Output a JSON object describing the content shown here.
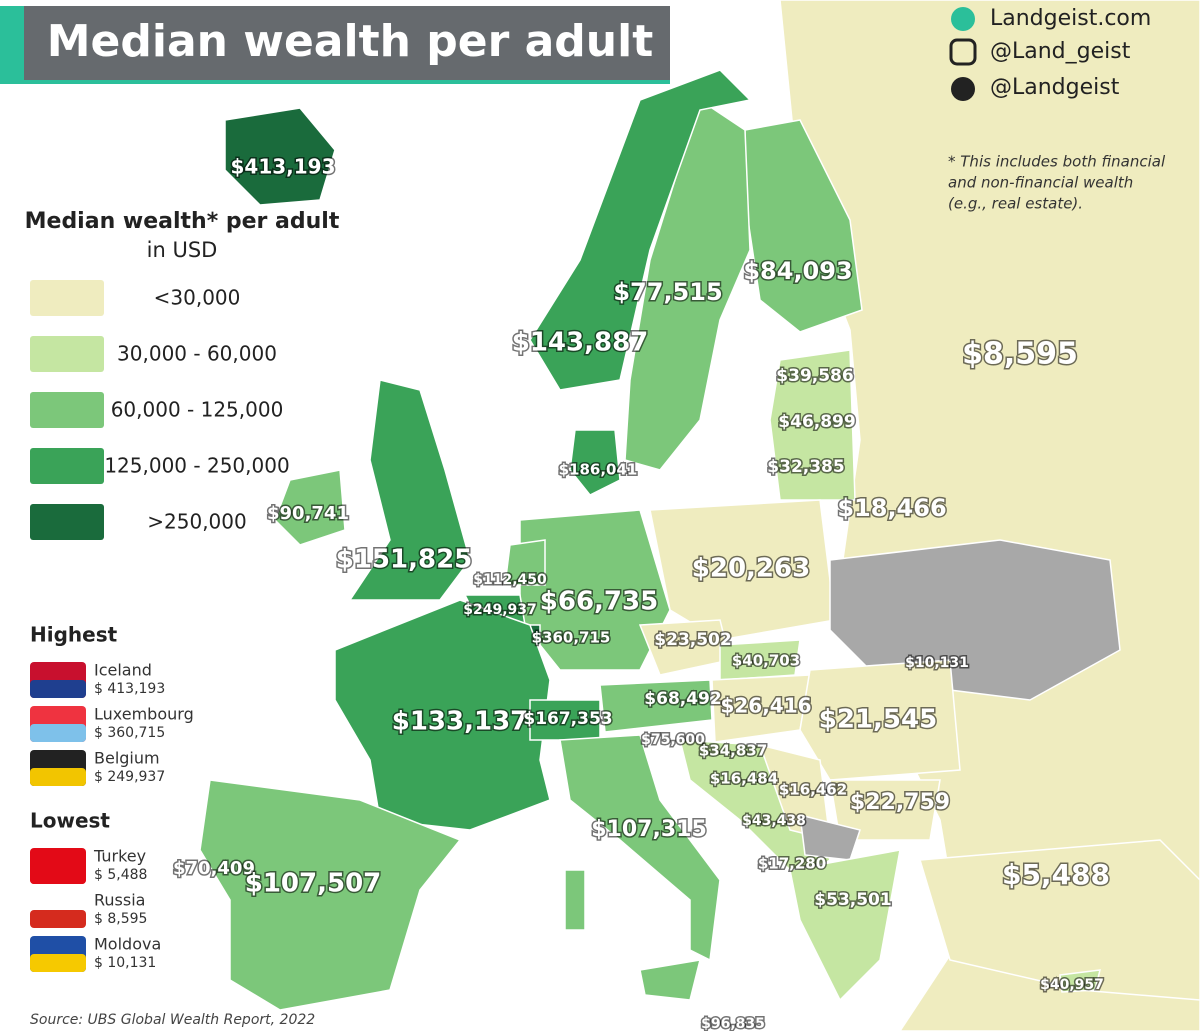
{
  "title": "Median wealth per adult",
  "social": [
    "Landgeist.com",
    "@Land_geist",
    "@Landgeist"
  ],
  "note": [
    "* This includes both financial",
    "and non-financial wealth",
    "(e.g., real estate)."
  ],
  "legend": {
    "title": "Median wealth* per adult",
    "subtitle": "in USD",
    "items": [
      {
        "label": "<30,000",
        "color": "#efecbf"
      },
      {
        "label": "30,000 - 60,000",
        "color": "#c5e6a2"
      },
      {
        "label": "60,000 - 125,000",
        "color": "#7cc77a"
      },
      {
        "label": "125,000 - 250,000",
        "color": "#3aa358"
      },
      {
        "label": ">250,000",
        "color": "#1a6b3c"
      }
    ]
  },
  "highest": {
    "title": "Highest",
    "items": [
      {
        "country": "Iceland",
        "value": "$ 413,193"
      },
      {
        "country": "Luxembourg",
        "value": "$ 360,715"
      },
      {
        "country": "Belgium",
        "value": "$ 249,937"
      }
    ]
  },
  "lowest": {
    "title": "Lowest",
    "items": [
      {
        "country": "Turkey",
        "value": "$ 5,488"
      },
      {
        "country": "Russia",
        "value": "$ 8,595"
      },
      {
        "country": "Moldova",
        "value": "$ 10,131"
      }
    ]
  },
  "labels": [
    "$413,193",
    "$77,515",
    "$84,093",
    "$143,887",
    "$8,595",
    "$39,586",
    "$46,899",
    "$32,385",
    "$186,041",
    "$18,466",
    "$90,741",
    "$151,825",
    "$20,263",
    "$112,450",
    "$66,735",
    "$249,937",
    "$360,715",
    "$23,502",
    "$40,703",
    "$10,131",
    "$68,492",
    "$26,416",
    "$133,137",
    "$167,353",
    "$21,545",
    "$75,600",
    "$34,837",
    "$16,484",
    "$16,462",
    "$22,759",
    "$43,438",
    "$107,315",
    "$17,280",
    "$70,409",
    "$107,507",
    "$5,488",
    "$53,501",
    "$40,957",
    "$96,835"
  ],
  "source": "Source: UBS Global Wealth Report, 2022"
}
